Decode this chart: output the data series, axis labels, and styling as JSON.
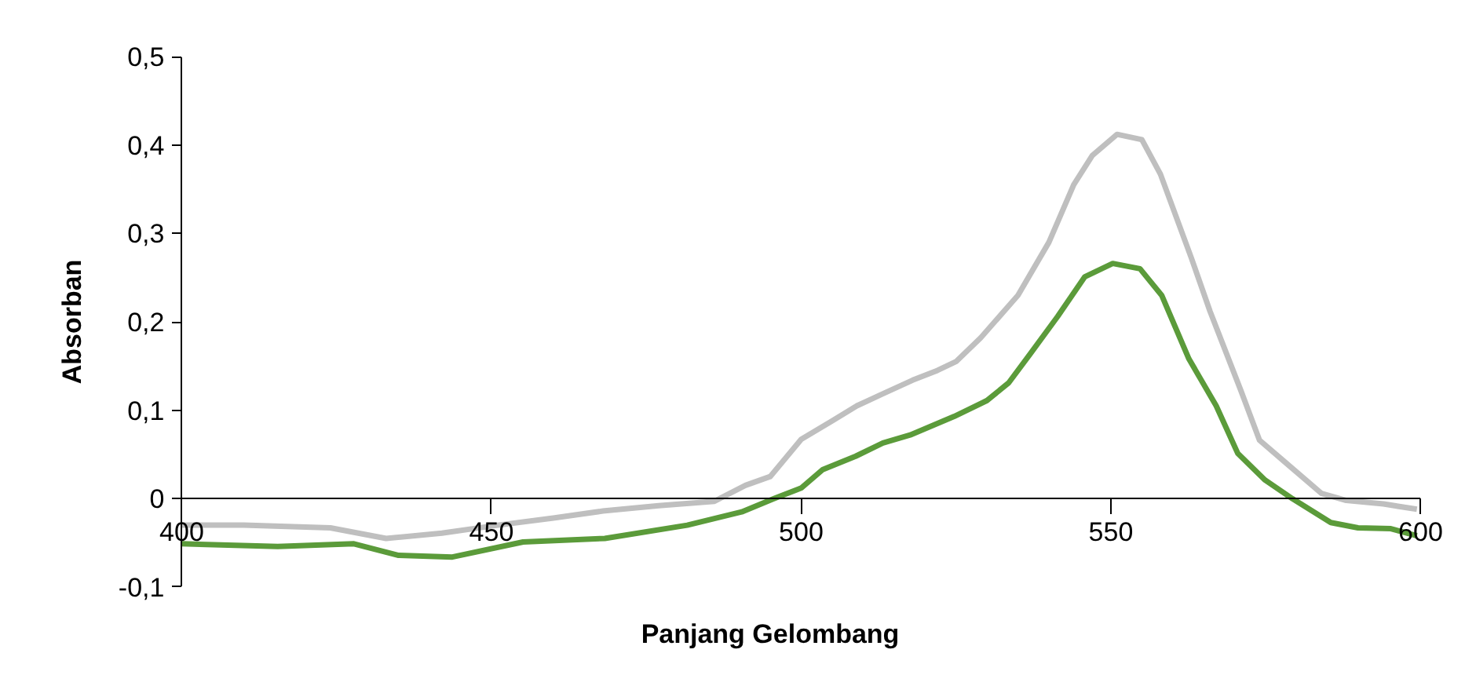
{
  "chart_data": {
    "type": "line",
    "xlabel": "Panjang Gelombang",
    "ylabel": "Absorban",
    "xlim": [
      400,
      600
    ],
    "xticks": [
      400,
      450,
      500,
      550,
      600
    ],
    "ylim": [
      -0.1,
      0.5
    ],
    "yticks": [
      {
        "value": -0.1,
        "label": "-0,1"
      },
      {
        "value": 0,
        "label": "0"
      },
      {
        "value": 0.1,
        "label": "0,1"
      },
      {
        "value": 0.2,
        "label": "0,2"
      },
      {
        "value": 0.3,
        "label": "0,3"
      },
      {
        "value": 0.4,
        "label": "0,4"
      },
      {
        "value": 0.5,
        "label": "0,5"
      }
    ],
    "grid": false,
    "marker": "none",
    "line_style": "solid",
    "series": [
      {
        "color": "#bfbfbf",
        "x": [
          400,
          410,
          424,
          433,
          442,
          451,
          460,
          468,
          477,
          486,
          491,
          495,
          500,
          505,
          509,
          513,
          518,
          522,
          525,
          529,
          535,
          540,
          544,
          547,
          551,
          555,
          558,
          563,
          566,
          571,
          574,
          578,
          584,
          588,
          594,
          599.4
        ],
        "values": [
          -0.03,
          -0.03,
          -0.033,
          -0.045,
          -0.039,
          -0.03,
          -0.022,
          -0.014,
          -0.008,
          -0.003,
          0.015,
          0.025,
          0.067,
          0.088,
          0.105,
          0.118,
          0.134,
          0.145,
          0.155,
          0.182,
          0.23,
          0.29,
          0.355,
          0.388,
          0.412,
          0.406,
          0.367,
          0.272,
          0.212,
          0.122,
          0.066,
          0.042,
          0.006,
          -0.002,
          -0.006,
          -0.012
        ]
      },
      {
        "color": "#5b9b3a",
        "x": [
          400,
          415.5,
          427.8,
          434.9,
          443.7,
          455.1,
          468.3,
          481.6,
          490.4,
          495.6,
          500,
          503.5,
          508.8,
          513.2,
          517.6,
          524.7,
          530,
          533.5,
          537,
          541.4,
          545.8,
          550.3,
          554.7,
          558.2,
          562.6,
          567,
          570.5,
          574.9,
          579.3,
          585.5,
          589.9,
          595.2,
          599.4
        ],
        "values": [
          -0.051,
          -0.054,
          -0.051,
          -0.064,
          -0.066,
          -0.049,
          -0.045,
          -0.03,
          -0.015,
          0.0,
          0.012,
          0.033,
          0.048,
          0.063,
          0.072,
          0.093,
          0.111,
          0.131,
          0.164,
          0.206,
          0.251,
          0.266,
          0.26,
          0.23,
          0.158,
          0.105,
          0.051,
          0.021,
          0.0,
          -0.027,
          -0.033,
          -0.034,
          -0.042
        ]
      }
    ]
  }
}
